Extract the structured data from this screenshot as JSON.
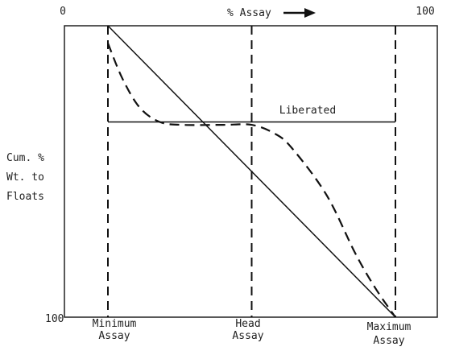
{
  "chart_data": {
    "type": "line",
    "top_axis": {
      "left_tick": "0",
      "label": "% Assay",
      "right_tick": "100"
    },
    "y_axis": {
      "label_lines": [
        "Cum. %",
        "Wt. to",
        "Floats"
      ],
      "bottom_tick": "100"
    },
    "bottom_labels": [
      {
        "line1": "Minimum",
        "line2": "Assay"
      },
      {
        "line1": "Head",
        "line2": "Assay"
      },
      {
        "line1": "Maximum",
        "line2": "Assay"
      }
    ],
    "annotation": "Liberated",
    "series": [
      {
        "style": "solid",
        "points": [
          [
            0,
            0
          ],
          [
            100,
            100
          ]
        ]
      },
      {
        "style": "solid",
        "points": [
          [
            0,
            33
          ],
          [
            100,
            33
          ]
        ]
      },
      {
        "style": "dashed",
        "points": [
          [
            0,
            6
          ],
          [
            5,
            18
          ],
          [
            11,
            28
          ],
          [
            18,
            33
          ],
          [
            26,
            34
          ],
          [
            40,
            34
          ],
          [
            50,
            34
          ],
          [
            58,
            37
          ],
          [
            64,
            42
          ],
          [
            76,
            58
          ],
          [
            86,
            78
          ],
          [
            93,
            90
          ],
          [
            100,
            100
          ]
        ]
      }
    ],
    "reference_lines": [
      {
        "x": 0,
        "style": "dashed"
      },
      {
        "x": 50,
        "style": "dashed"
      },
      {
        "x": 100,
        "style": "dashed"
      }
    ],
    "xlim": [
      0,
      100
    ],
    "ylim": [
      0,
      100
    ],
    "grid": false
  }
}
